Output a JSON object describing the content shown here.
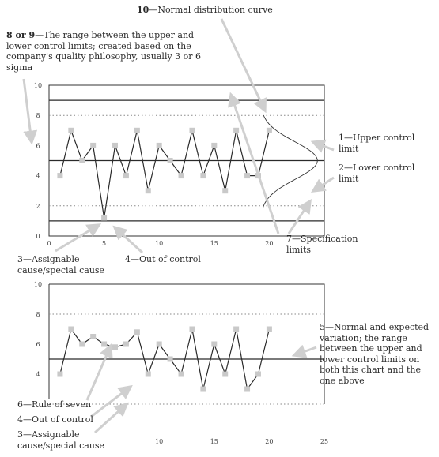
{
  "annotations": {
    "top_title": {
      "num": "10",
      "text": "Normal distribution curve"
    },
    "range": {
      "num": "8 or 9",
      "text": "The range between the upper and lower control limits; created based on the company's quality philosophy, usually 3 or 6 sigma"
    },
    "ucl": {
      "num": "1",
      "text": "Upper control limit"
    },
    "lcl": {
      "num": "2",
      "text": "Lower control limit"
    },
    "spec": {
      "num": "7",
      "text": "Specification limits"
    },
    "assignable_top": {
      "num": "3",
      "text": "Assignable cause/special cause"
    },
    "ooc_top": {
      "num": "4",
      "text": "Out of control"
    },
    "normal": {
      "num": "5",
      "text": "Normal and expected variation; the range between the upper and lower control limits on both this chart and the one above"
    },
    "seven": {
      "num": "6",
      "text": "Rule of seven"
    },
    "ooc_bottom": {
      "num": "4",
      "text": "Out of control"
    },
    "assignable_bottom": {
      "num": "3",
      "text": "Assignable cause/special cause"
    }
  },
  "colors": {
    "line": "#2a2a2a",
    "marker": "#c9c9c9",
    "dotted": "#8a8a8a",
    "arrow": "#cfcfcf"
  },
  "chart_data": [
    {
      "type": "line",
      "x": [
        1,
        2,
        3,
        4,
        5,
        6,
        7,
        8,
        9,
        10,
        11,
        12,
        13,
        14,
        15,
        16,
        17,
        18,
        19,
        20
      ],
      "values": [
        4,
        7,
        5,
        6,
        1.2,
        6,
        4,
        7,
        3,
        6,
        5,
        4,
        7,
        4,
        6,
        3,
        7,
        4,
        4,
        7
      ],
      "xticks": [
        0,
        5,
        10,
        15,
        20
      ],
      "yticks": [
        0,
        2,
        4,
        6,
        8,
        10
      ],
      "xlim": [
        0,
        25
      ],
      "ylim": [
        0,
        10
      ],
      "upper_control_limit": 9,
      "lower_control_limit": 1,
      "mean": 5,
      "specification_limits": [
        2,
        8
      ],
      "normal_distribution_curve": true
    },
    {
      "type": "line",
      "x": [
        1,
        2,
        3,
        4,
        5,
        6,
        7,
        8,
        9,
        10,
        11,
        12,
        13,
        14,
        15,
        16,
        17,
        18,
        19,
        20
      ],
      "values": [
        4,
        7,
        6,
        6.5,
        6,
        5.8,
        6,
        6.8,
        4,
        6,
        5,
        4,
        7,
        3,
        6,
        4,
        7,
        3,
        4,
        7
      ],
      "xticks": [
        10,
        15,
        20,
        25
      ],
      "yticks": [
        4,
        6,
        8,
        10
      ],
      "xlim": [
        0,
        25
      ],
      "ylim": [
        2,
        10
      ],
      "mean": 5,
      "specification_limits": [
        2,
        8
      ]
    }
  ]
}
